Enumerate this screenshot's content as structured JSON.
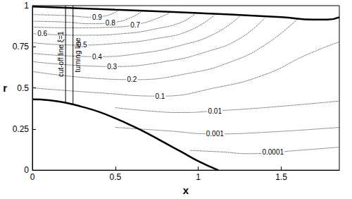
{
  "chart_data": {
    "type": "contour",
    "x_label": "x",
    "y_label": "r",
    "xlim": [
      0,
      1.85
    ],
    "ylim": [
      0,
      1
    ],
    "xticks": [
      0,
      0.5,
      1,
      1.5
    ],
    "yticks": [
      0,
      0.25,
      0.5,
      0.75,
      1
    ],
    "grid": false,
    "color": "#000000",
    "walls": [
      {
        "points": [
          [
            0,
            0.995
          ],
          [
            0.5,
            0.975
          ],
          [
            1,
            0.955
          ],
          [
            1.5,
            0.93
          ],
          [
            1.7,
            0.915
          ],
          [
            1.78,
            0.915
          ],
          [
            1.85,
            0.93
          ]
        ]
      },
      {
        "points": [
          [
            0,
            0.43
          ],
          [
            0.1,
            0.425
          ],
          [
            0.2,
            0.41
          ],
          [
            0.3,
            0.385
          ],
          [
            0.4,
            0.355
          ],
          [
            0.5,
            0.315
          ],
          [
            0.6,
            0.27
          ],
          [
            0.7,
            0.22
          ],
          [
            0.8,
            0.165
          ],
          [
            0.9,
            0.11
          ],
          [
            1.0,
            0.055
          ],
          [
            1.12,
            0
          ]
        ]
      }
    ],
    "vertical_lines": [
      {
        "label": "cut-off line ξ=1",
        "x": 0.2,
        "r": [
          0.41,
          1
        ]
      },
      {
        "label": "turning line",
        "x": 0.245,
        "r": [
          0.4,
          1
        ]
      }
    ],
    "contours": [
      {
        "level": 0.9,
        "label_at": [
          0.39,
          0.93
        ],
        "points": [
          [
            0,
            0.945
          ],
          [
            0.2,
            0.94
          ],
          [
            0.35,
            0.93
          ],
          [
            0.45,
            0.94
          ],
          [
            0.52,
            0.973
          ]
        ]
      },
      {
        "level": 0.8,
        "label_at": [
          0.47,
          0.895
        ],
        "points": [
          [
            0,
            0.905
          ],
          [
            0.2,
            0.9
          ],
          [
            0.35,
            0.89
          ],
          [
            0.5,
            0.9
          ],
          [
            0.6,
            0.93
          ],
          [
            0.66,
            0.965
          ]
        ]
      },
      {
        "level": 0.7,
        "label_at": [
          0.62,
          0.88
        ],
        "points": [
          [
            0,
            0.87
          ],
          [
            0.25,
            0.865
          ],
          [
            0.5,
            0.87
          ],
          [
            0.65,
            0.89
          ],
          [
            0.77,
            0.93
          ],
          [
            0.83,
            0.958
          ]
        ]
      },
      {
        "level": 0.6,
        "label_at": [
          0.06,
          0.83
        ],
        "points": [
          [
            0,
            0.83
          ],
          [
            0.3,
            0.82
          ],
          [
            0.55,
            0.83
          ],
          [
            0.75,
            0.86
          ],
          [
            0.9,
            0.9
          ],
          [
            0.98,
            0.95
          ]
        ]
      },
      {
        "level": 0.5,
        "label_at": [
          0.3,
          0.76
        ],
        "points": [
          [
            0,
            0.775
          ],
          [
            0.26,
            0.76
          ],
          [
            0.5,
            0.77
          ],
          [
            0.75,
            0.8
          ],
          [
            0.95,
            0.85
          ],
          [
            1.1,
            0.945
          ]
        ]
      },
      {
        "level": 0.4,
        "label_at": [
          0.39,
          0.69
        ],
        "points": [
          [
            0,
            0.71
          ],
          [
            0.39,
            0.69
          ],
          [
            0.65,
            0.71
          ],
          [
            0.9,
            0.76
          ],
          [
            1.1,
            0.83
          ],
          [
            1.25,
            0.935
          ]
        ]
      },
      {
        "level": 0.3,
        "label_at": [
          0.48,
          0.63
        ],
        "points": [
          [
            0,
            0.66
          ],
          [
            0.48,
            0.63
          ],
          [
            0.8,
            0.66
          ],
          [
            1.05,
            0.72
          ],
          [
            1.25,
            0.8
          ],
          [
            1.4,
            0.925
          ]
        ]
      },
      {
        "level": 0.2,
        "label_at": [
          0.6,
          0.55
        ],
        "points": [
          [
            0,
            0.6
          ],
          [
            0.6,
            0.55
          ],
          [
            0.95,
            0.59
          ],
          [
            1.2,
            0.66
          ],
          [
            1.4,
            0.76
          ],
          [
            1.6,
            0.92
          ]
        ]
      },
      {
        "level": 0.1,
        "label_at": [
          0.77,
          0.45
        ],
        "points": [
          [
            0,
            0.5
          ],
          [
            0.4,
            0.47
          ],
          [
            0.77,
            0.45
          ],
          [
            1.1,
            0.5
          ],
          [
            1.4,
            0.58
          ],
          [
            1.65,
            0.7
          ],
          [
            1.85,
            0.78
          ]
        ]
      },
      {
        "level": 0.01,
        "label_at": [
          1.1,
          0.36
        ],
        "points": [
          [
            0.5,
            0.38
          ],
          [
            0.7,
            0.36
          ],
          [
            0.9,
            0.35
          ],
          [
            1.1,
            0.36
          ],
          [
            1.4,
            0.38
          ],
          [
            1.85,
            0.42
          ]
        ]
      },
      {
        "level": 0.001,
        "label_at": [
          1.1,
          0.22
        ],
        "points": [
          [
            0.5,
            0.26
          ],
          [
            0.8,
            0.24
          ],
          [
            1.1,
            0.22
          ],
          [
            1.4,
            0.23
          ],
          [
            1.85,
            0.26
          ]
        ]
      },
      {
        "level": 0.0001,
        "label_at": [
          1.45,
          0.11
        ],
        "points": [
          [
            0.95,
            0.12
          ],
          [
            1.15,
            0.11
          ],
          [
            1.3,
            0.1
          ],
          [
            1.6,
            0.12
          ],
          [
            1.85,
            0.14
          ]
        ]
      }
    ]
  }
}
